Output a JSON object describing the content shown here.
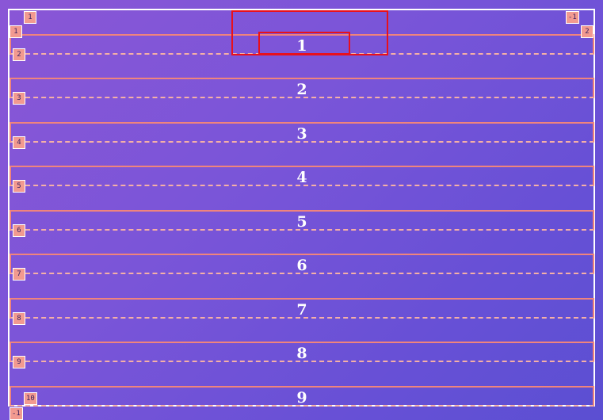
{
  "rows": [
    "1",
    "2",
    "3",
    "4",
    "5",
    "6",
    "7",
    "8",
    "9"
  ],
  "line_badges": {
    "top_left_col": "1",
    "top_right_col": "-1",
    "top_left_row": "1",
    "top_right_row": "2",
    "row_lines": [
      "2",
      "3",
      "4",
      "5",
      "6",
      "7",
      "8",
      "9"
    ],
    "bottom_row": "10",
    "bottom_neg": "-1"
  },
  "colors": {
    "grid_outline": "#ffffff",
    "track_border": "#f0847c",
    "badge_bg": "#f29a90",
    "selection": "#e8101c"
  }
}
